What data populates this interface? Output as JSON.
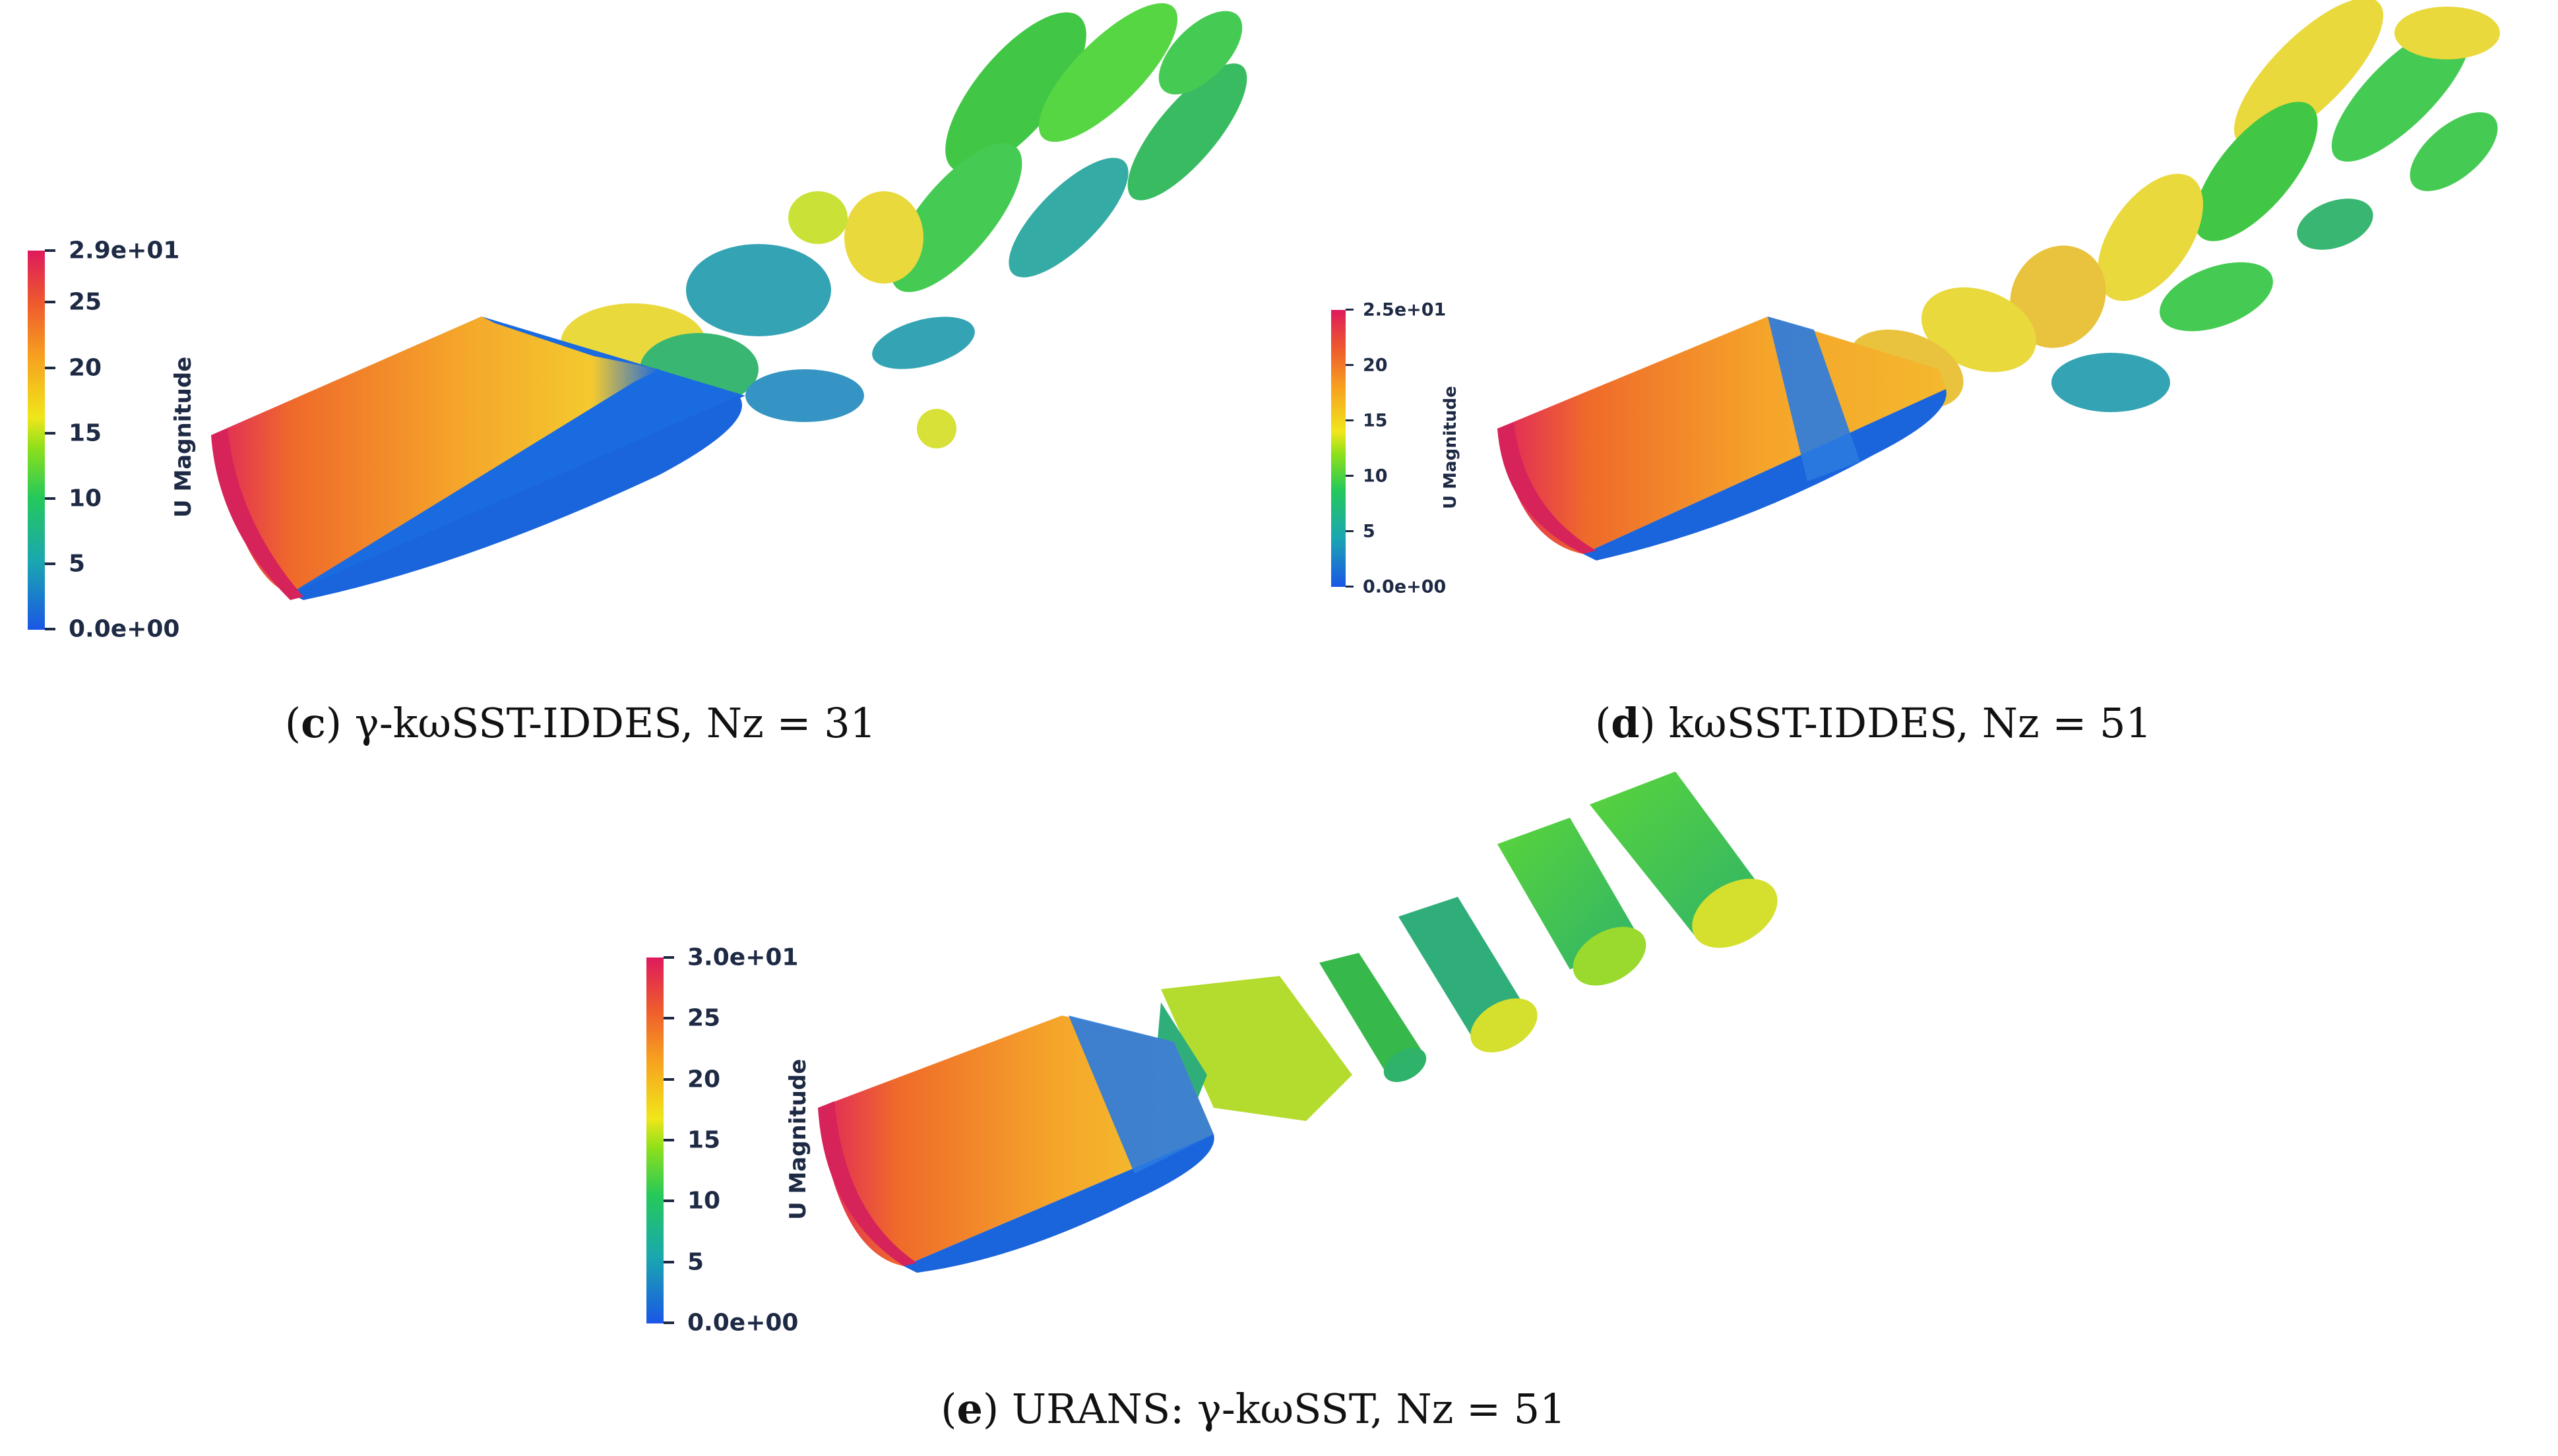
{
  "figure": {
    "panels": [
      {
        "id": "c",
        "caption_label": "c",
        "caption_text": "γ-kωSST-IDDES, Nz = 31",
        "colorbar": {
          "title": "U Magnitude",
          "ticks": [
            "2.9e+01",
            "25",
            "20",
            "15",
            "10",
            "5",
            "0.0e+00"
          ]
        }
      },
      {
        "id": "d",
        "caption_label": "d",
        "caption_text": "kωSST-IDDES, Nz = 51",
        "colorbar": {
          "title": "U Magnitude",
          "ticks": [
            "2.5e+01",
            "20",
            "15",
            "10",
            "5",
            "0.0e+00"
          ]
        }
      },
      {
        "id": "e",
        "caption_label": "e",
        "caption_text": "URANS: γ-kωSST, Nz = 51",
        "colorbar": {
          "title": "U Magnitude",
          "ticks": [
            "3.0e+01",
            "25",
            "20",
            "15",
            "10",
            "5",
            "0.0e+00"
          ]
        }
      }
    ]
  }
}
